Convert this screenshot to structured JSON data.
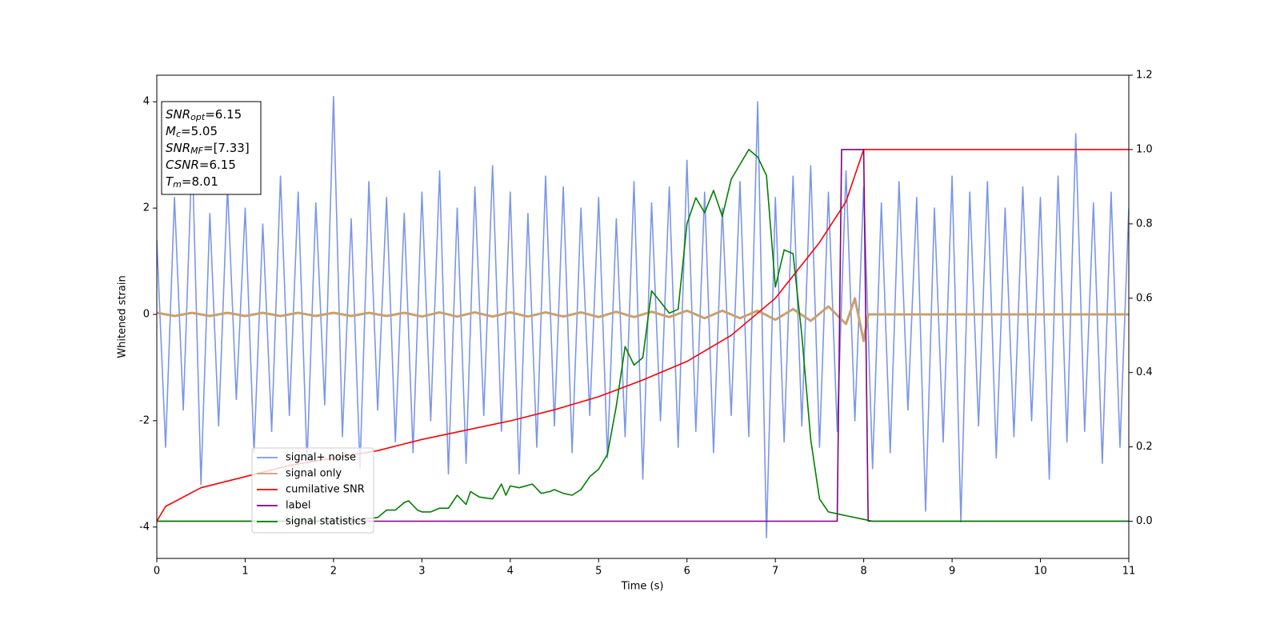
{
  "chart_data": {
    "type": "line",
    "xlabel": "Time (s)",
    "ylabel": "Whitened strain",
    "xlim": [
      0,
      11
    ],
    "xticks": [
      0,
      1,
      2,
      3,
      4,
      5,
      6,
      7,
      8,
      9,
      10,
      11
    ],
    "ylim": [
      -4.59,
      4.5
    ],
    "yticks": [
      -4,
      -2,
      0,
      2,
      4
    ],
    "y2lim": [
      -0.1,
      1.2
    ],
    "y2ticks": [
      {
        "value": 0,
        "label": "0.0"
      },
      0.2,
      0.4,
      0.6,
      0.8,
      {
        "value": 1,
        "label": "1.0"
      },
      1.2
    ],
    "legend": "lower left",
    "annotation": [
      {
        "main": "SNR",
        "sub": "opt",
        "rest": "=6.15"
      },
      {
        "main": "M",
        "sub": "c",
        "rest": "=5.05"
      },
      {
        "main": "SNR",
        "sub": "MF",
        "rest": "=[7.33]"
      },
      {
        "main": "CSNR",
        "sub": null,
        "rest": "=6.15"
      },
      {
        "main": "T",
        "sub": "m",
        "rest": "=8.01"
      }
    ],
    "series": [
      {
        "name": "signal+ noise",
        "color": "#7b96e8",
        "axis": "y",
        "x": [
          0,
          0.1,
          0.2,
          0.3,
          0.4,
          0.5,
          0.6,
          0.7,
          0.8,
          0.9,
          1,
          1.1,
          1.2,
          1.3,
          1.4,
          1.5,
          1.6,
          1.7,
          1.8,
          1.9,
          2,
          2.1,
          2.2,
          2.3,
          2.4,
          2.5,
          2.6,
          2.7,
          2.8,
          2.9,
          3,
          3.1,
          3.2,
          3.3,
          3.4,
          3.5,
          3.6,
          3.7,
          3.8,
          3.9,
          4,
          4.1,
          4.2,
          4.3,
          4.4,
          4.5,
          4.6,
          4.7,
          4.8,
          4.9,
          5,
          5.1,
          5.2,
          5.3,
          5.4,
          5.5,
          5.6,
          5.7,
          5.8,
          5.9,
          6,
          6.1,
          6.2,
          6.3,
          6.4,
          6.5,
          6.6,
          6.7,
          6.8,
          6.9,
          7,
          7.1,
          7.2,
          7.3,
          7.4,
          7.5,
          7.6,
          7.7,
          7.8,
          7.9,
          8,
          8.1,
          8.2,
          8.3,
          8.4,
          8.5,
          8.6,
          8.7,
          8.8,
          8.9,
          9,
          9.1,
          9.2,
          9.3,
          9.4,
          9.5,
          9.6,
          9.7,
          9.8,
          9.9,
          10,
          10.1,
          10.2,
          10.3,
          10.4,
          10.5,
          10.6,
          10.7,
          10.8,
          10.9,
          11
        ],
        "values": [
          1.4,
          -2.5,
          2.2,
          -1.8,
          3.1,
          -3.2,
          1.9,
          -2.1,
          2.4,
          -1.6,
          2.0,
          -2.6,
          1.7,
          -2.2,
          2.6,
          -1.9,
          2.3,
          -2.8,
          2.1,
          -1.7,
          4.1,
          -2.3,
          1.8,
          -2.9,
          2.5,
          -1.8,
          2.2,
          -2.4,
          1.9,
          -2.6,
          2.3,
          -2.0,
          2.7,
          -3.0,
          2.0,
          -2.8,
          2.4,
          -1.9,
          2.8,
          -2.2,
          2.3,
          -3.0,
          1.9,
          -2.5,
          2.6,
          -2.1,
          2.4,
          -2.6,
          2.0,
          -1.9,
          2.2,
          -2.7,
          1.8,
          -2.3,
          2.5,
          -3.1,
          2.1,
          -2.0,
          2.4,
          -2.5,
          2.9,
          -2.2,
          2.3,
          -2.6,
          2.0,
          -1.9,
          2.5,
          -2.3,
          4.0,
          -4.2,
          2.2,
          -2.4,
          2.6,
          -2.1,
          2.8,
          -2.5,
          2.3,
          -2.2,
          2.7,
          -2.0,
          2.4,
          -2.9,
          2.1,
          -2.6,
          2.5,
          -1.8,
          2.2,
          -3.7,
          2.0,
          -2.4,
          2.6,
          -3.9,
          2.3,
          -2.1,
          2.5,
          -2.7,
          2.0,
          -2.3,
          2.4,
          -2.0,
          2.2,
          -3.1,
          2.6,
          -2.4,
          3.4,
          -2.2,
          2.1,
          -2.8,
          2.3,
          -2.5,
          2.0
        ]
      },
      {
        "name": "signal only",
        "color": "#c8a070",
        "axis": "y",
        "x": [
          0,
          0.2,
          0.4,
          0.6,
          0.8,
          1,
          1.2,
          1.4,
          1.6,
          1.8,
          2,
          2.2,
          2.4,
          2.6,
          2.8,
          3,
          3.2,
          3.4,
          3.6,
          3.8,
          4,
          4.2,
          4.4,
          4.6,
          4.8,
          5,
          5.2,
          5.4,
          5.6,
          5.8,
          6,
          6.2,
          6.4,
          6.6,
          6.8,
          7,
          7.2,
          7.4,
          7.6,
          7.8,
          7.9,
          8,
          8.05,
          11
        ],
        "values": [
          0.03,
          -0.03,
          0.03,
          -0.03,
          0.03,
          -0.03,
          0.03,
          -0.03,
          0.03,
          -0.03,
          0.03,
          -0.03,
          0.03,
          -0.03,
          0.03,
          -0.04,
          0.04,
          -0.04,
          0.04,
          -0.04,
          0.04,
          -0.04,
          0.04,
          -0.04,
          0.04,
          -0.05,
          0.05,
          -0.05,
          0.05,
          -0.05,
          0.07,
          -0.07,
          0.07,
          -0.07,
          0.07,
          -0.1,
          0.1,
          -0.12,
          0.15,
          -0.18,
          0.3,
          -0.5,
          0,
          0
        ]
      },
      {
        "name": "cumilative SNR",
        "color": "#ff0000",
        "axis": "y2",
        "x": [
          0,
          0.1,
          0.5,
          1,
          1.5,
          2,
          2.5,
          3,
          3.5,
          4,
          4.5,
          5,
          5.5,
          6,
          6.5,
          7,
          7.5,
          7.8,
          8,
          11
        ],
        "values": [
          0,
          0.04,
          0.09,
          0.12,
          0.15,
          0.17,
          0.19,
          0.22,
          0.245,
          0.27,
          0.3,
          0.335,
          0.38,
          0.43,
          0.5,
          0.6,
          0.75,
          0.86,
          1,
          1
        ]
      },
      {
        "name": "label",
        "color": "#800080",
        "axis": "y2",
        "x": [
          0,
          7.7,
          7.75,
          8,
          8.05,
          11
        ],
        "values": [
          0,
          0,
          1,
          1,
          0,
          0
        ]
      },
      {
        "name": "signal statistics",
        "color": "#008000",
        "axis": "y2",
        "x": [
          0,
          2,
          2.3,
          2.5,
          2.6,
          2.7,
          2.8,
          2.85,
          2.95,
          3,
          3.1,
          3.2,
          3.3,
          3.4,
          3.5,
          3.55,
          3.65,
          3.8,
          3.9,
          3.95,
          4,
          4.1,
          4.25,
          4.35,
          4.45,
          4.5,
          4.6,
          4.7,
          4.8,
          4.9,
          5,
          5.1,
          5.2,
          5.3,
          5.4,
          5.5,
          5.6,
          5.7,
          5.8,
          5.9,
          6,
          6.1,
          6.2,
          6.3,
          6.4,
          6.5,
          6.6,
          6.7,
          6.8,
          6.9,
          7,
          7.1,
          7.2,
          7.3,
          7.4,
          7.5,
          7.6,
          7.7,
          7.8,
          8,
          8.1,
          11
        ],
        "values": [
          0,
          0,
          0.005,
          0.01,
          0.03,
          0.03,
          0.05,
          0.055,
          0.03,
          0.025,
          0.025,
          0.035,
          0.035,
          0.07,
          0.045,
          0.08,
          0.065,
          0.06,
          0.1,
          0.07,
          0.095,
          0.09,
          0.1,
          0.075,
          0.08,
          0.085,
          0.075,
          0.07,
          0.085,
          0.12,
          0.14,
          0.18,
          0.31,
          0.47,
          0.42,
          0.44,
          0.62,
          0.59,
          0.56,
          0.57,
          0.8,
          0.87,
          0.83,
          0.89,
          0.82,
          0.92,
          0.96,
          1,
          0.98,
          0.93,
          0.63,
          0.73,
          0.72,
          0.5,
          0.22,
          0.06,
          0.025,
          0.02,
          0.015,
          0.005,
          0,
          0
        ]
      }
    ]
  }
}
